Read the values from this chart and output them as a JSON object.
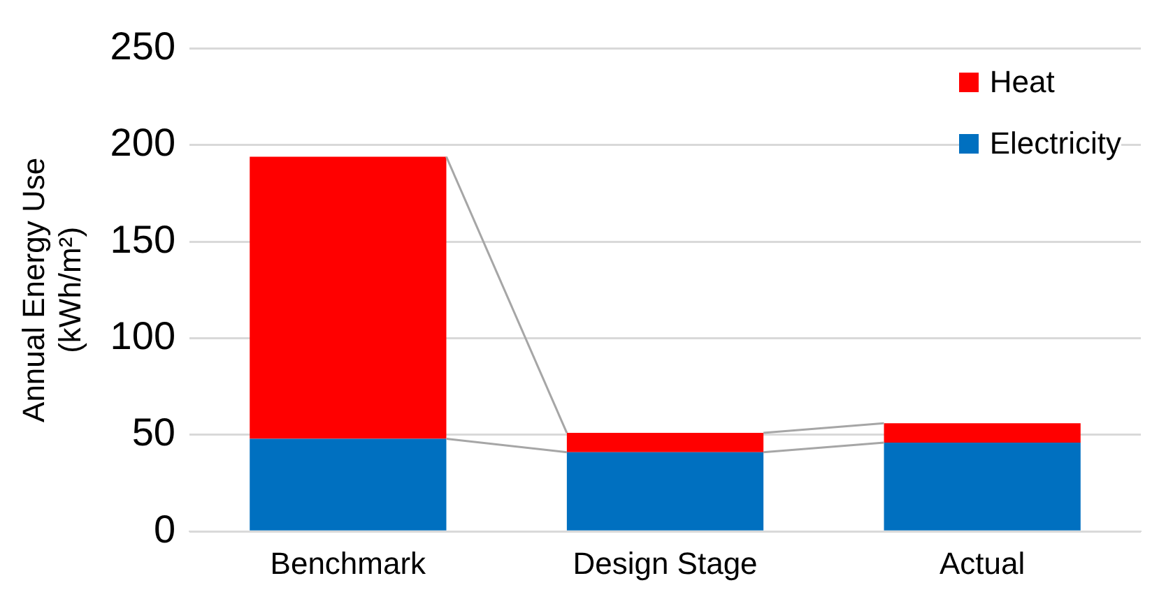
{
  "chart_data": {
    "type": "bar",
    "stacked": true,
    "ylabel": "Annual Energy Use\n(kWh/m²)",
    "categories": [
      "Benchmark",
      "Design Stage",
      "Actual"
    ],
    "series": [
      {
        "name": "Electricity",
        "color": "#0070c0",
        "values": [
          48,
          41,
          46
        ]
      },
      {
        "name": "Heat",
        "color": "#ff0000",
        "values": [
          146,
          10,
          10
        ]
      }
    ],
    "ylim": [
      0,
      250
    ],
    "yticks": [
      0,
      50,
      100,
      150,
      200,
      250
    ],
    "grid": "y",
    "legend": "top right"
  }
}
